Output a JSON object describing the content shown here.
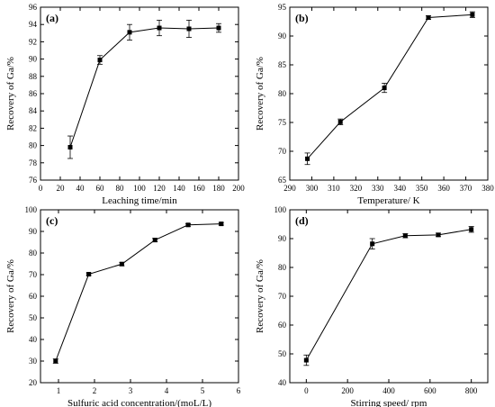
{
  "chart_data": [
    {
      "type": "line",
      "panel_label": "(a)",
      "xlabel": "Leaching time/min",
      "ylabel": "Recovery of Ga/%",
      "xlim": [
        0,
        200
      ],
      "ylim": [
        76,
        96
      ],
      "xticks": [
        0,
        20,
        40,
        60,
        80,
        100,
        120,
        140,
        160,
        180,
        200
      ],
      "yticks": [
        76,
        78,
        80,
        82,
        84,
        86,
        88,
        90,
        92,
        94,
        96
      ],
      "series": [
        {
          "x": [
            30,
            60,
            90,
            120,
            150,
            180
          ],
          "values": [
            79.8,
            89.9,
            93.1,
            93.6,
            93.5,
            93.6
          ],
          "errors": [
            1.3,
            0.5,
            0.9,
            0.9,
            1.0,
            0.5
          ]
        }
      ]
    },
    {
      "type": "line",
      "panel_label": "(b)",
      "xlabel": "Temperature/ K",
      "ylabel": "Recovery of Ga/%",
      "xlim": [
        290,
        380
      ],
      "ylim": [
        65,
        95
      ],
      "xticks": [
        290,
        300,
        310,
        320,
        330,
        340,
        350,
        360,
        370,
        380
      ],
      "yticks": [
        65,
        70,
        75,
        80,
        85,
        90,
        95
      ],
      "series": [
        {
          "x": [
            298,
            313,
            333,
            353,
            373
          ],
          "values": [
            68.7,
            75.1,
            81.0,
            93.2,
            93.7
          ],
          "errors": [
            1.0,
            0.5,
            0.8,
            0.3,
            0.5
          ]
        }
      ]
    },
    {
      "type": "line",
      "panel_label": "(c)",
      "xlabel": "Sulfuric acid concentration/(moL/L)",
      "ylabel": "Recovery of Ga/%",
      "xlim": [
        0.5,
        6
      ],
      "ylim": [
        20,
        100
      ],
      "xticks": [
        1,
        2,
        3,
        4,
        5,
        6
      ],
      "yticks": [
        20,
        30,
        40,
        50,
        60,
        70,
        80,
        90,
        100
      ],
      "series": [
        {
          "x": [
            0.92,
            1.84,
            2.76,
            3.68,
            4.6,
            5.52
          ],
          "values": [
            30.0,
            70.2,
            74.9,
            86.0,
            93.0,
            93.5
          ],
          "errors": [
            1.0,
            0.6,
            0.8,
            0.8,
            0.6,
            0.6
          ]
        }
      ]
    },
    {
      "type": "line",
      "panel_label": "(d)",
      "xlabel": "Stirring speed/ rpm",
      "ylabel": "Recovery of Ga/%",
      "xlim": [
        -80,
        880
      ],
      "ylim": [
        40,
        100
      ],
      "xticks": [
        0,
        200,
        400,
        600,
        800
      ],
      "yticks": [
        40,
        50,
        60,
        70,
        80,
        90,
        100
      ],
      "series": [
        {
          "x": [
            0,
            320,
            480,
            640,
            800
          ],
          "values": [
            47.8,
            88.2,
            91.0,
            91.3,
            93.2
          ],
          "errors": [
            1.8,
            1.8,
            0.7,
            0.6,
            1.0
          ]
        }
      ]
    }
  ]
}
